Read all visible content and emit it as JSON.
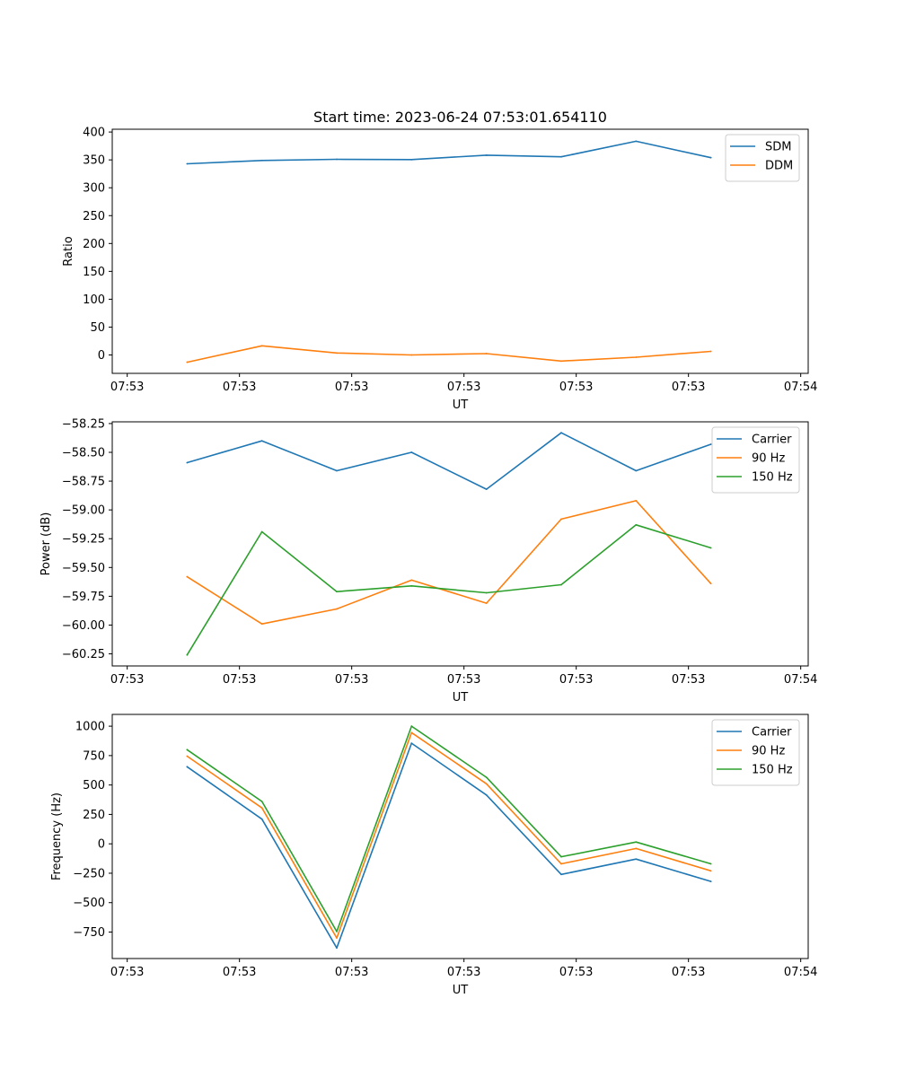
{
  "figure_title": "Start time: 2023-06-24 07:53:01.654110",
  "chart_data": [
    {
      "type": "line",
      "title": "Start time: 2023-06-24 07:53:01.654110",
      "xlabel": "UT",
      "ylabel": "Ratio",
      "x_tick_labels": [
        "07:53",
        "07:53",
        "07:53",
        "07:53",
        "07:53",
        "07:53",
        "07:54"
      ],
      "yticks": [
        0,
        50,
        100,
        150,
        200,
        250,
        300,
        350,
        400
      ],
      "y_tick_labels": [
        "0",
        "50",
        "100",
        "150",
        "200",
        "250",
        "300",
        "350",
        "400"
      ],
      "ylim": [
        -33,
        405
      ],
      "x": [
        1,
        2,
        3,
        4,
        5,
        6,
        7,
        8
      ],
      "xlim": [
        0,
        9.3
      ],
      "xticks": [
        0.2,
        1.7,
        3.2,
        4.7,
        6.2,
        7.7,
        9.2
      ],
      "legend_position": "top-right",
      "grid": false,
      "series": [
        {
          "name": "SDM",
          "color": "#1f77b4",
          "values": [
            343,
            349,
            351,
            350.5,
            358.5,
            355.5,
            383.5,
            354
          ]
        },
        {
          "name": "DDM",
          "color": "#ff7f0e",
          "values": [
            -13,
            16.5,
            3.5,
            0,
            2.5,
            -11,
            -4,
            6.5
          ]
        }
      ]
    },
    {
      "type": "line",
      "xlabel": "UT",
      "ylabel": "Power (dB)",
      "x_tick_labels": [
        "07:53",
        "07:53",
        "07:53",
        "07:53",
        "07:53",
        "07:53",
        "07:54"
      ],
      "yticks": [
        -60.25,
        -60.0,
        -59.75,
        -59.5,
        -59.25,
        -59.0,
        -58.75,
        -58.5,
        -58.25
      ],
      "y_tick_labels": [
        "−60.25",
        "−60.00",
        "−59.75",
        "−59.50",
        "−59.25",
        "−59.00",
        "−58.75",
        "−58.50",
        "−58.25"
      ],
      "ylim": [
        -60.355,
        -58.235
      ],
      "x": [
        1,
        2,
        3,
        4,
        5,
        6,
        7,
        8
      ],
      "xlim": [
        0,
        9.3
      ],
      "xticks": [
        0.2,
        1.7,
        3.2,
        4.7,
        6.2,
        7.7,
        9.2
      ],
      "legend_position": "top-right",
      "grid": false,
      "series": [
        {
          "name": "Carrier",
          "color": "#1f77b4",
          "values": [
            -58.59,
            -58.4,
            -58.66,
            -58.5,
            -58.82,
            -58.33,
            -58.66,
            -58.43
          ]
        },
        {
          "name": "90 Hz",
          "color": "#ff7f0e",
          "values": [
            -59.58,
            -59.99,
            -59.86,
            -59.61,
            -59.81,
            -59.08,
            -58.92,
            -59.64
          ]
        },
        {
          "name": "150 Hz",
          "color": "#2ca02c",
          "values": [
            -60.26,
            -59.19,
            -59.71,
            -59.66,
            -59.72,
            -59.65,
            -59.13,
            -59.33
          ]
        }
      ]
    },
    {
      "type": "line",
      "xlabel": "UT",
      "ylabel": "Frequency (Hz)",
      "x_tick_labels": [
        "07:53",
        "07:53",
        "07:53",
        "07:53",
        "07:53",
        "07:53",
        "07:54"
      ],
      "yticks": [
        -750,
        -500,
        -250,
        0,
        250,
        500,
        750,
        1000
      ],
      "y_tick_labels": [
        "−750",
        "−500",
        "−250",
        "0",
        "250",
        "500",
        "750",
        "1000"
      ],
      "ylim": [
        -975,
        1100
      ],
      "x": [
        1,
        2,
        3,
        4,
        5,
        6,
        7,
        8
      ],
      "xlim": [
        0,
        9.3
      ],
      "xticks": [
        0.2,
        1.7,
        3.2,
        4.7,
        6.2,
        7.7,
        9.2
      ],
      "legend_position": "top-right",
      "grid": false,
      "series": [
        {
          "name": "Carrier",
          "color": "#1f77b4",
          "values": [
            655,
            210,
            -885,
            855,
            415,
            -260,
            -130,
            -320
          ]
        },
        {
          "name": "90 Hz",
          "color": "#ff7f0e",
          "values": [
            745,
            305,
            -800,
            945,
            510,
            -170,
            -40,
            -230
          ]
        },
        {
          "name": "150 Hz",
          "color": "#2ca02c",
          "values": [
            800,
            360,
            -745,
            1000,
            565,
            -110,
            15,
            -170
          ]
        }
      ]
    }
  ]
}
